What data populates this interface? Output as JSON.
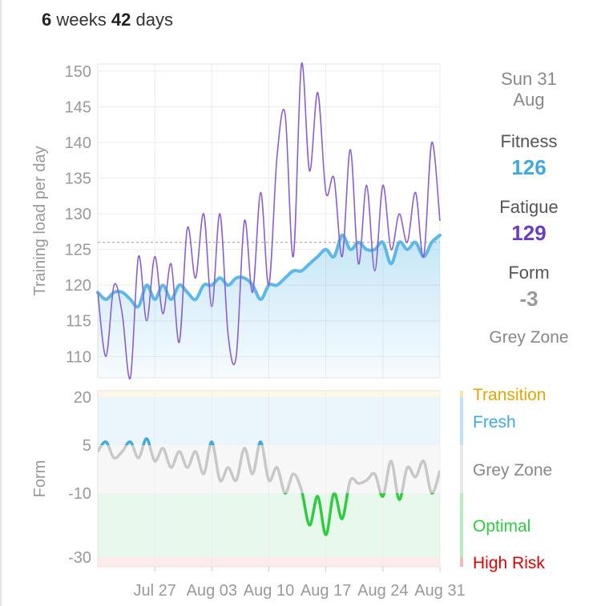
{
  "header": {
    "weeks_num": "6",
    "weeks_word": "weeks",
    "days_num": "42",
    "days_word": "days"
  },
  "sidebar": {
    "date_line1": "Sun 31",
    "date_line2": "Aug",
    "fitness_label": "Fitness",
    "fitness_value": "126",
    "fatigue_label": "Fatigue",
    "fatigue_value": "129",
    "form_label": "Form",
    "form_value": "-3",
    "zone_text": "Grey Zone"
  },
  "colors": {
    "fitness": "#5bb8e8",
    "fatigue": "#8a5fd0",
    "fitness_value": "#3fa9dd",
    "fatigue_value": "#6a3fbf",
    "form_value": "#999999",
    "transition": "#e0a800",
    "fresh": "#3fa9dd",
    "grey_zone": "#888888",
    "optimal": "#2ecc40",
    "high_risk": "#e00000"
  },
  "chart_data": [
    {
      "type": "line",
      "ylabel": "Training load per day",
      "ylim": [
        107,
        151
      ],
      "yticks": [
        110,
        115,
        120,
        125,
        130,
        135,
        140,
        145,
        150
      ],
      "x_range": [
        "2025-07-20",
        "2025-08-31"
      ],
      "xticks": [
        {
          "date": "2025-07-27",
          "label": "Jul 27"
        },
        {
          "date": "2025-08-03",
          "label": "Aug 03"
        },
        {
          "date": "2025-08-10",
          "label": "Aug 10"
        },
        {
          "date": "2025-08-17",
          "label": "Aug 17"
        },
        {
          "date": "2025-08-24",
          "label": "Aug 24"
        },
        {
          "date": "2025-08-31",
          "label": "Aug 31"
        }
      ],
      "reference_value": 126,
      "series": [
        {
          "name": "Fitness",
          "values": [
            119,
            118,
            119,
            119,
            118,
            117,
            120,
            118,
            120,
            118,
            120,
            119,
            118,
            120,
            120,
            121,
            120,
            121,
            121,
            120,
            118,
            120,
            120,
            121,
            122,
            122,
            123,
            124,
            125,
            124,
            127,
            125,
            126,
            125,
            125,
            126,
            123,
            126,
            125,
            126,
            124,
            126,
            127
          ]
        },
        {
          "name": "Fatigue",
          "values": [
            119,
            110,
            120,
            116,
            107,
            124,
            115,
            124,
            116,
            123,
            112,
            128,
            121,
            130,
            117,
            130,
            113,
            110,
            129,
            119,
            133,
            120,
            138,
            144,
            124,
            151,
            136,
            147,
            133,
            135,
            124,
            139,
            123,
            134,
            122,
            134,
            125,
            130,
            126,
            133,
            124,
            140,
            129
          ]
        }
      ]
    },
    {
      "type": "line",
      "ylabel": "Form",
      "ylim": [
        -33,
        22
      ],
      "yticks": [
        -30,
        -10,
        5,
        20
      ],
      "zones": [
        {
          "name": "Transition",
          "from": 20,
          "to": 27
        },
        {
          "name": "Fresh",
          "from": 5,
          "to": 20
        },
        {
          "name": "Grey Zone",
          "from": -10,
          "to": 5
        },
        {
          "name": "Optimal",
          "from": -30,
          "to": -10
        },
        {
          "name": "High Risk",
          "from": -40,
          "to": -30
        }
      ],
      "series": [
        {
          "name": "Form",
          "values": [
            3,
            6,
            1,
            3,
            6,
            1,
            7,
            0,
            4,
            -2,
            3,
            -2,
            3,
            -4,
            6,
            -6,
            -2,
            -6,
            4,
            -4,
            6,
            -6,
            -2,
            -10,
            -4,
            -9,
            -20,
            -11,
            -23,
            -10,
            -18,
            -6,
            -7,
            -6,
            -4,
            -11,
            0,
            -12,
            -2,
            -5,
            0,
            -10,
            -3
          ]
        }
      ]
    }
  ]
}
